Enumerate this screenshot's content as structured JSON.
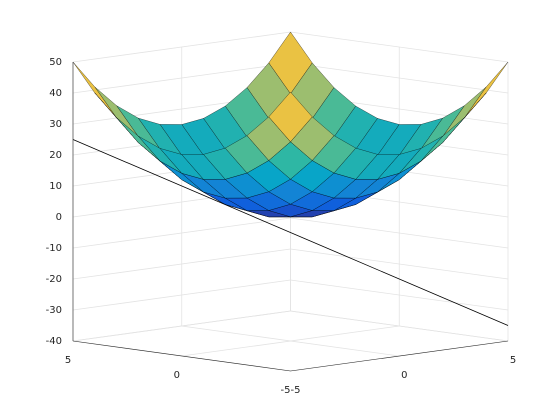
{
  "chart_data": {
    "type": "surface",
    "x": [
      -5,
      -4,
      -3,
      -2,
      -1,
      0,
      1,
      2,
      3,
      4,
      5
    ],
    "y": [
      -5,
      -4,
      -3,
      -2,
      -1,
      0,
      1,
      2,
      3,
      4,
      5
    ],
    "z": [
      [
        50,
        41,
        34,
        29,
        26,
        25,
        26,
        29,
        34,
        41,
        50
      ],
      [
        41,
        32,
        25,
        20,
        17,
        16,
        17,
        20,
        25,
        32,
        41
      ],
      [
        34,
        25,
        18,
        13,
        10,
        9,
        10,
        13,
        18,
        25,
        34
      ],
      [
        29,
        20,
        13,
        8,
        5,
        4,
        5,
        8,
        13,
        20,
        29
      ],
      [
        26,
        17,
        10,
        5,
        2,
        1,
        2,
        5,
        10,
        17,
        26
      ],
      [
        25,
        16,
        9,
        4,
        1,
        0,
        1,
        4,
        9,
        16,
        25
      ],
      [
        26,
        17,
        10,
        5,
        2,
        1,
        2,
        5,
        10,
        17,
        26
      ],
      [
        29,
        20,
        13,
        8,
        5,
        4,
        5,
        8,
        13,
        20,
        29
      ],
      [
        34,
        25,
        18,
        13,
        10,
        9,
        10,
        13,
        18,
        25,
        34
      ],
      [
        41,
        32,
        25,
        20,
        17,
        16,
        17,
        20,
        25,
        32,
        41
      ],
      [
        50,
        41,
        34,
        29,
        26,
        25,
        26,
        29,
        34,
        41,
        50
      ]
    ],
    "colormap": [
      "#352a87",
      "#0f5cdd",
      "#1481d6",
      "#06a4ca",
      "#2eb7a4",
      "#87bf77",
      "#d1bb59",
      "#fec832",
      "#f9fb0e"
    ],
    "clim": [
      0,
      50
    ],
    "edge_color": "#000000",
    "line": {
      "x": [
        5,
        -5
      ],
      "y": [
        -5,
        5
      ],
      "z": [
        25,
        -35
      ],
      "color": "#000000"
    },
    "xlim": [
      -5,
      5
    ],
    "ylim": [
      -5,
      5
    ],
    "zlim": [
      -40,
      50
    ],
    "xticks": [
      -5,
      0,
      5
    ],
    "yticks": [
      -5,
      0,
      5
    ],
    "zticks": [
      -40,
      -30,
      -20,
      -10,
      0,
      10,
      20,
      30,
      40,
      50
    ],
    "grid": true
  }
}
